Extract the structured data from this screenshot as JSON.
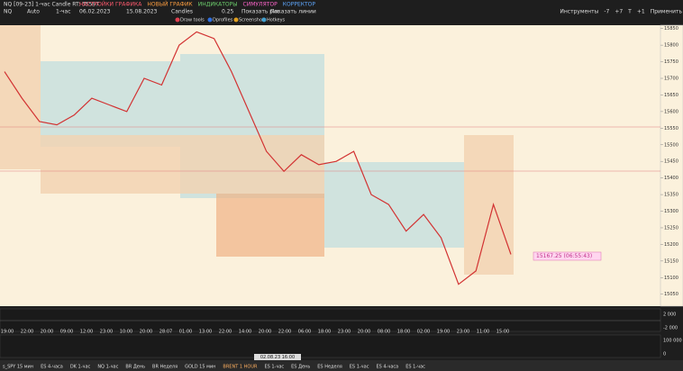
{
  "toolbar": {
    "title": "NQ [09-23] 1-час Candle RT: 35597",
    "menu": [
      {
        "label": "НАСТРОЙКИ ГРАФИКА",
        "color": "#ff5a6e"
      },
      {
        "label": "НОВЫЙ ГРАФИК",
        "color": "#ff9f40"
      },
      {
        "label": "ИНДИКАТОРЫ",
        "color": "#6fd36f"
      },
      {
        "label": "СИМУЛЯТОР",
        "color": "#ff66cc"
      },
      {
        "label": "КОРРЕКТОР",
        "color": "#5fa8ff"
      }
    ],
    "right_buttons": [
      "Инструменты",
      "-7",
      "+7",
      "T",
      "+1",
      "Применить"
    ],
    "settings": [
      "NQ",
      "Auto",
      "1-час",
      "06.02.2023",
      "15.08.2023",
      "Candles",
      "0.25",
      "Показать рис.",
      "Показать линии"
    ],
    "tools": [
      "Draw tools",
      "Dprofiles",
      "Screenshot",
      "Hotkeys"
    ]
  },
  "chart": {
    "ylim": [
      15014,
      15860
    ],
    "yticks": [
      15050,
      15100,
      15150,
      15200,
      15250,
      15300,
      15350,
      15400,
      15450,
      15500,
      15550,
      15600,
      15650,
      15700,
      15750,
      15800,
      15850
    ],
    "price_path": [
      15720,
      15640,
      15570,
      15560,
      15590,
      15640,
      15620,
      15600,
      15700,
      15680,
      15800,
      15840,
      15820,
      15720,
      15600,
      15480,
      15420,
      15470,
      15440,
      15450,
      15480,
      15350,
      15320,
      15240,
      15290,
      15220,
      15080,
      15120,
      15320,
      15170
    ],
    "line_color": "#d23232",
    "current_price_label": "15167.25 (06:55:43)",
    "delta_labels": [
      "2 000",
      "-2 000"
    ],
    "volume_labels": [
      "100 000",
      "0"
    ],
    "time_labels": [
      "19:00",
      "22:00",
      "20:00",
      "09:00",
      "12:00",
      "23:00",
      "10:00",
      "20:00",
      "28:07",
      "01:00",
      "13:00",
      "22:00",
      "14:00",
      "20:00",
      "22:00",
      "06:00",
      "18:00",
      "23:00",
      "20:00",
      "08:00",
      "18:00",
      "02:00",
      "19:00",
      "23:00",
      "11:00",
      "15:00"
    ],
    "cursor_time": "02.08.23 16:00"
  },
  "tabs": [
    "s_SPY 15 мин",
    "ES 4-часа",
    "DK 1-час",
    "NQ 1-час",
    "BR День",
    "BR Неделя",
    "GOLD 15 мин",
    "BRENT 1 HOUR",
    "ES 1-час",
    "ES День",
    "ES Неделя",
    "ES 1-час",
    "ES 4-часа",
    "ES 1-час"
  ]
}
